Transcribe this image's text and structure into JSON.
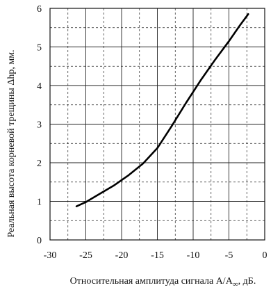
{
  "chart_data": {
    "type": "line",
    "xlabel": "Относительная амплитуда сигнала A/A∞, дБ.",
    "ylabel": "Реальная высота корневой трещины  Δhp, мм.",
    "xlim": [
      -30,
      0
    ],
    "ylim": [
      0,
      6
    ],
    "x_ticks": [
      -30,
      -25,
      -20,
      -15,
      -10,
      -5,
      0
    ],
    "y_ticks": [
      0,
      1,
      2,
      3,
      4,
      5,
      6
    ],
    "x_tick_labels": [
      "-30",
      "-25",
      "-20",
      "-15",
      "-10",
      "-5",
      "0"
    ],
    "y_tick_labels": [
      "0",
      "1",
      "2",
      "3",
      "4",
      "5",
      "6"
    ],
    "x_minor_step": 2.5,
    "y_minor_step": 0.5,
    "grid": "major solid, minor dashed",
    "series": [
      {
        "x": [
          -26.3,
          -25,
          -23,
          -21,
          -19,
          -17,
          -15,
          -13,
          -11,
          -9,
          -7,
          -5,
          -3.5,
          -2.3
        ],
        "values": [
          0.87,
          0.98,
          1.2,
          1.42,
          1.68,
          1.98,
          2.38,
          2.95,
          3.55,
          4.12,
          4.65,
          5.15,
          5.55,
          5.85
        ]
      }
    ]
  }
}
